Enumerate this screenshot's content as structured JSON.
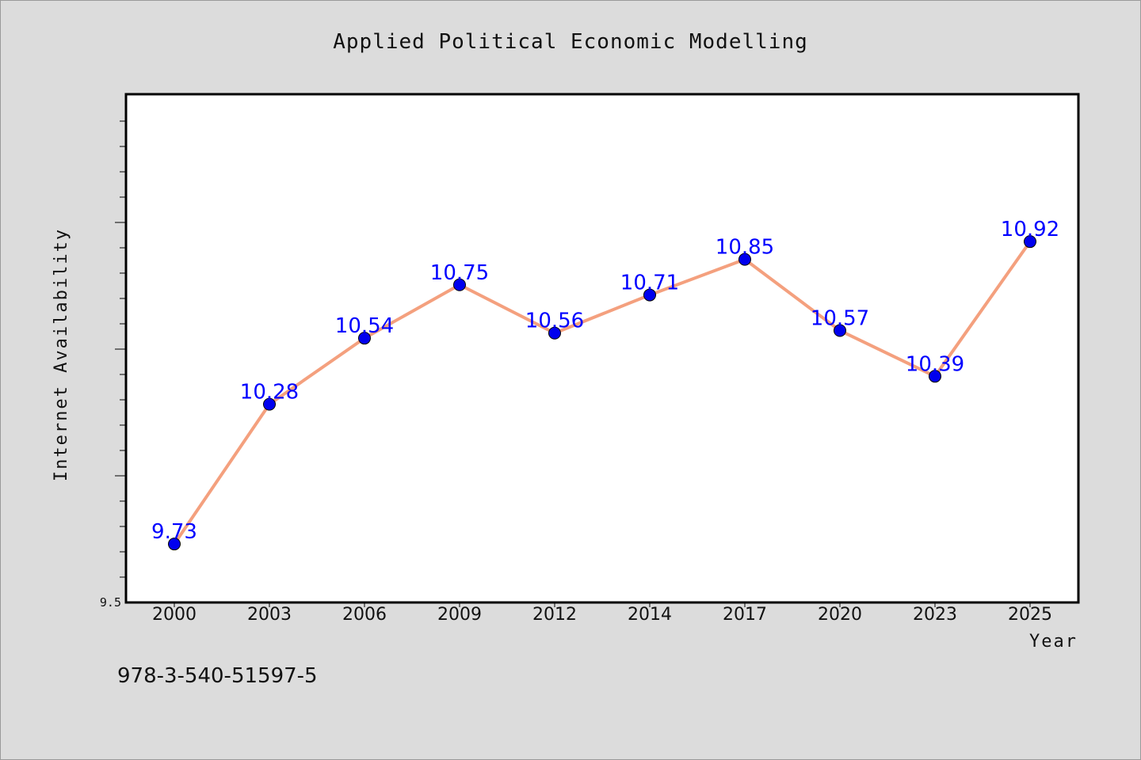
{
  "chart_data": {
    "type": "line",
    "title": "Applied Political Economic Modelling",
    "xlabel": "Year",
    "ylabel": "Internet Availability",
    "categories": [
      "2000",
      "2003",
      "2006",
      "2009",
      "2012",
      "2014",
      "2017",
      "2020",
      "2023",
      "2025"
    ],
    "series": [
      {
        "values": [
          9.73,
          10.28,
          10.54,
          10.75,
          10.56,
          10.71,
          10.85,
          10.57,
          10.39,
          10.92
        ],
        "labels": [
          "9.73",
          "10.28",
          "10.54",
          "10.75",
          "10.56",
          "10.71",
          "10.85",
          "10.57",
          "10.39",
          "10.92"
        ]
      }
    ],
    "ylim": [
      9.5,
      11.5
    ],
    "ytick_labels": [
      "9.5"
    ],
    "grid": false,
    "colors": {
      "line": "#f4a07e",
      "marker": "#0000ee",
      "label": "#0000ff",
      "plot_bg": "#ffffff",
      "page_bg": "#dcdcdc"
    }
  },
  "footer": {
    "isbn": "978-3-540-51597-5"
  }
}
